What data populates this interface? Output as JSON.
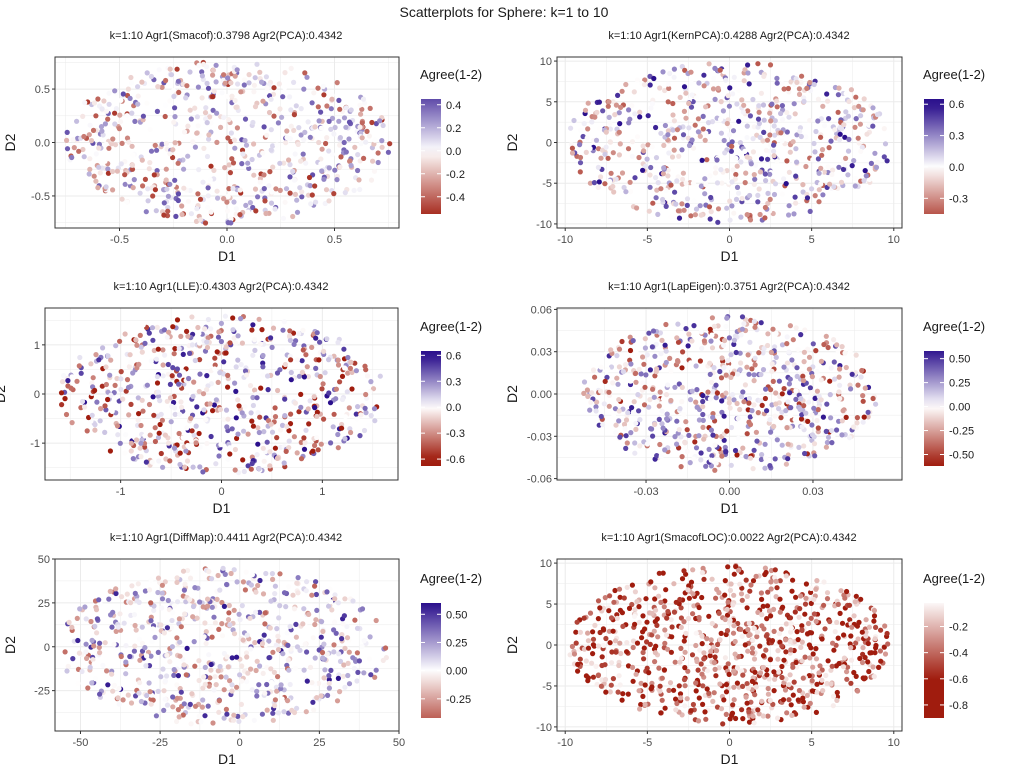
{
  "figure_title": "Scatterplots for Sphere: k=1 to 10",
  "colors": {
    "low": "#a01c0e",
    "mid": "#ffffff",
    "high": "#2a0f8c",
    "grid": "#ebebeb",
    "panel_border": "#333333"
  },
  "chart_data": [
    {
      "type": "scatter",
      "title": "k=1:10 Agr1(Smacof):0.3798 Agr2(PCA):0.4342",
      "xlabel": "D1",
      "ylabel": "D2",
      "xlim": [
        -0.8,
        0.8
      ],
      "ylim": [
        -0.8,
        0.8
      ],
      "xticks": [
        -0.5,
        0.0,
        0.5
      ],
      "xtick_labels": [
        "-0.5",
        "0.0",
        "0.5"
      ],
      "yticks": [
        -0.5,
        0.0,
        0.5
      ],
      "ytick_labels": [
        "-0.5",
        "0.0",
        "0.5"
      ],
      "rx": 0.76,
      "ry": 0.76,
      "n_points": 700,
      "seed": 11,
      "legend": {
        "title": "Agree(1-2)",
        "range": [
          -0.55,
          0.45
        ],
        "ticks": [
          -0.4,
          -0.2,
          0.0,
          0.2,
          0.4
        ],
        "tick_labels": [
          "-0.4",
          "-0.2",
          "0.0",
          "0.2",
          "0.4"
        ]
      }
    },
    {
      "type": "scatter",
      "title": "k=1:10 Agr1(KernPCA):0.4288 Agr2(PCA):0.4342",
      "xlabel": "D1",
      "ylabel": "D2",
      "xlim": [
        -10.5,
        10.5
      ],
      "ylim": [
        -10.5,
        10.5
      ],
      "xticks": [
        -10,
        -5,
        0,
        5,
        10
      ],
      "xtick_labels": [
        "-10",
        "-5",
        "0",
        "5",
        "10"
      ],
      "yticks": [
        -10,
        -5,
        0,
        5,
        10
      ],
      "ytick_labels": [
        "-10",
        "-5",
        "0",
        "5",
        "10"
      ],
      "rx": 9.9,
      "ry": 9.9,
      "n_points": 700,
      "seed": 23,
      "legend": {
        "title": "Agree(1-2)",
        "range": [
          -0.45,
          0.65
        ],
        "ticks": [
          -0.3,
          0.0,
          0.3,
          0.6
        ],
        "tick_labels": [
          "-0.3",
          "0.0",
          "0.3",
          "0.6"
        ]
      }
    },
    {
      "type": "scatter",
      "title": "k=1:10 Agr1(LLE):0.4303 Agr2(PCA):0.4342",
      "xlabel": "D1",
      "ylabel": "D2",
      "xlim": [
        -1.75,
        1.75
      ],
      "ylim": [
        -1.75,
        1.75
      ],
      "xticks": [
        -1,
        0,
        1
      ],
      "xtick_labels": [
        "-1",
        "0",
        "1"
      ],
      "yticks": [
        -1,
        0,
        1
      ],
      "ytick_labels": [
        "-1",
        "0",
        "1"
      ],
      "rx": 1.62,
      "ry": 1.62,
      "n_points": 700,
      "seed": 37,
      "legend": {
        "title": "Agree(1-2)",
        "range": [
          -0.68,
          0.65
        ],
        "ticks": [
          -0.6,
          -0.3,
          0.0,
          0.3,
          0.6
        ],
        "tick_labels": [
          "-0.6",
          "-0.3",
          "0.0",
          "0.3",
          "0.6"
        ]
      }
    },
    {
      "type": "scatter",
      "title": "k=1:10 Agr1(LapEigen):0.3751 Agr2(PCA):0.4342",
      "xlabel": "D1",
      "ylabel": "D2",
      "xlim": [
        -0.062,
        0.062
      ],
      "ylim": [
        -0.061,
        0.061
      ],
      "xticks": [
        -0.03,
        0.0,
        0.03
      ],
      "xtick_labels": [
        "-0.03",
        "0.00",
        "0.03"
      ],
      "yticks": [
        -0.06,
        -0.03,
        0.0,
        0.03,
        0.06
      ],
      "ytick_labels": [
        "-0.06",
        "-0.03",
        "0.00",
        "0.03",
        "0.06"
      ],
      "rx": 0.053,
      "ry": 0.055,
      "n_points": 700,
      "seed": 41,
      "legend": {
        "title": "Agree(1-2)",
        "range": [
          -0.62,
          0.58
        ],
        "ticks": [
          -0.5,
          -0.25,
          0.0,
          0.25,
          0.5
        ],
        "tick_labels": [
          "-0.50",
          "-0.25",
          "0.00",
          "0.25",
          "0.50"
        ]
      }
    },
    {
      "type": "scatter",
      "title": "k=1:10 Agr1(DiffMap):0.4411 Agr2(PCA):0.4342",
      "xlabel": "D1",
      "ylabel": "D2",
      "xlim": [
        -58,
        50
      ],
      "ylim": [
        -48,
        50
      ],
      "xticks": [
        -50,
        -25,
        0,
        25,
        50
      ],
      "xtick_labels": [
        "-50",
        "-25",
        "0",
        "25",
        "50"
      ],
      "yticks": [
        -25,
        0,
        25,
        50
      ],
      "ytick_labels": [
        "-25",
        "0",
        "25",
        "50"
      ],
      "rx": 52,
      "ry": 45,
      "cx": -5,
      "n_points": 700,
      "seed": 53,
      "legend": {
        "title": "Agree(1-2)",
        "range": [
          -0.42,
          0.6
        ],
        "ticks": [
          -0.25,
          0.0,
          0.25,
          0.5
        ],
        "tick_labels": [
          "-0.25",
          "0.00",
          "0.25",
          "0.50"
        ]
      }
    },
    {
      "type": "scatter",
      "title": "k=1:10 Agr1(SmacofLOC):0.0022 Agr2(PCA):0.4342",
      "xlabel": "D1",
      "ylabel": "D2",
      "xlim": [
        -10.5,
        10.5
      ],
      "ylim": [
        -10.5,
        10.5
      ],
      "xticks": [
        -10,
        -5,
        0,
        5,
        10
      ],
      "xtick_labels": [
        "-10",
        "-5",
        "0",
        "5",
        "10"
      ],
      "yticks": [
        -10,
        -5,
        0,
        5,
        10
      ],
      "ytick_labels": [
        "-10",
        "-5",
        "0",
        "5",
        "10"
      ],
      "rx": 9.8,
      "ry": 9.8,
      "n_points": 850,
      "seed": 67,
      "legend": {
        "title": "Agree(1-2)",
        "range": [
          -0.9,
          -0.02
        ],
        "ticks": [
          -0.8,
          -0.6,
          -0.4,
          -0.2
        ],
        "tick_labels": [
          "-0.8",
          "-0.6",
          "-0.4",
          "-0.2"
        ],
        "reds_only": true
      }
    }
  ]
}
